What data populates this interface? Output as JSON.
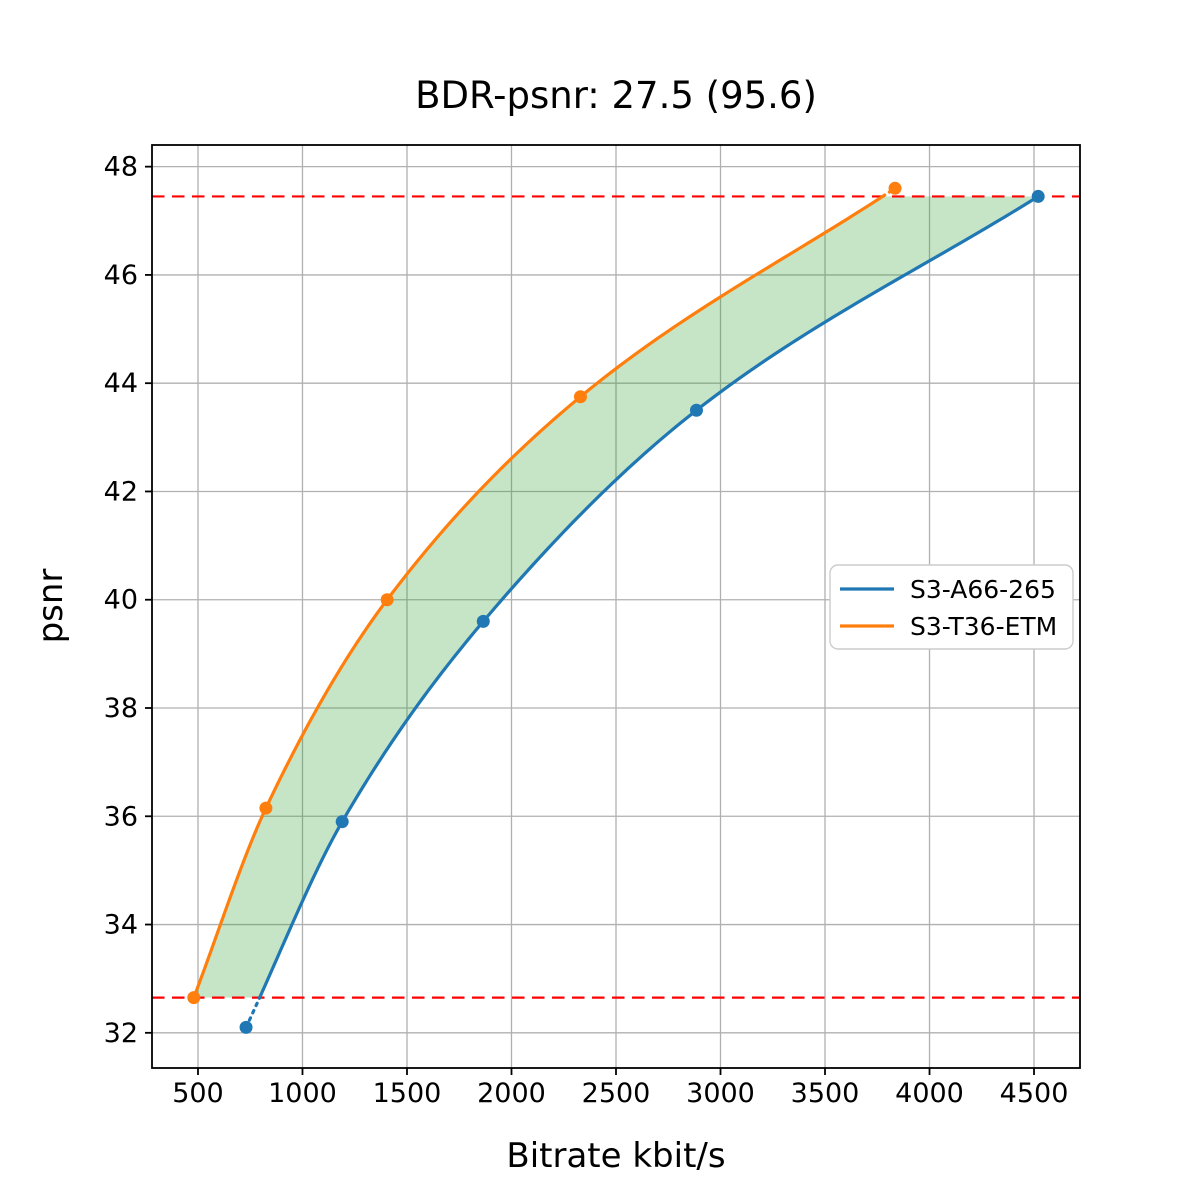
{
  "title": "BDR-psnr: 27.5 (95.6)",
  "chart_data": {
    "type": "line",
    "title": "BDR-psnr: 27.5 (95.6)",
    "xlabel": "Bitrate kbit/s",
    "ylabel": "psnr",
    "xlim": [
      280,
      4720
    ],
    "ylim": [
      31.35,
      48.4
    ],
    "xticks": [
      500,
      1000,
      1500,
      2000,
      2500,
      3000,
      3500,
      4000,
      4500
    ],
    "yticks": [
      32,
      34,
      36,
      38,
      40,
      42,
      44,
      46,
      48
    ],
    "grid": true,
    "grid_color": "#b0b0b0",
    "legend_position": "center-right",
    "series": [
      {
        "name": "S3-A66-265",
        "color": "#1f77b4",
        "points": [
          [
            730,
            32.1
          ],
          [
            1190,
            35.9
          ],
          [
            1865,
            39.6
          ],
          [
            2885,
            43.5
          ],
          [
            4520,
            47.45
          ]
        ]
      },
      {
        "name": "S3-T36-ETM",
        "color": "#ff7f0e",
        "points": [
          [
            480,
            32.65
          ],
          [
            825,
            36.15
          ],
          [
            1405,
            40.0
          ],
          [
            2330,
            43.75
          ],
          [
            3835,
            47.6
          ]
        ]
      }
    ],
    "overlap_band": {
      "low": 32.65,
      "high": 47.45,
      "line_color": "#ff0000",
      "line_style": "dashed"
    },
    "shaded_region": {
      "color": "#2ca02c",
      "opacity": 0.27
    }
  }
}
